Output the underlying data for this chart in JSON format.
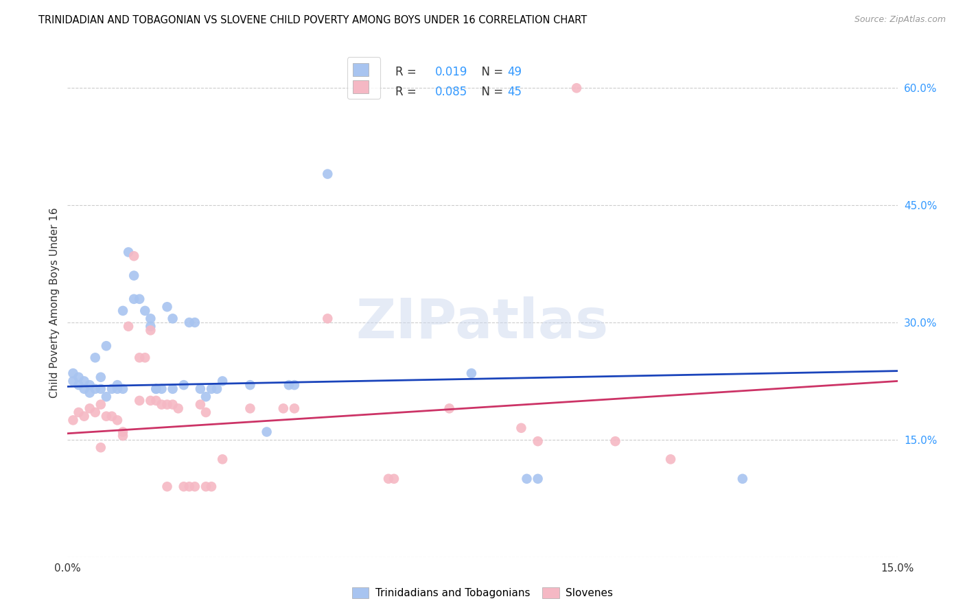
{
  "title": "TRINIDADIAN AND TOBAGONIAN VS SLOVENE CHILD POVERTY AMONG BOYS UNDER 16 CORRELATION CHART",
  "source": "Source: ZipAtlas.com",
  "ylabel": "Child Poverty Among Boys Under 16",
  "xmin": 0.0,
  "xmax": 0.15,
  "ymin": 0.0,
  "ymax": 0.65,
  "yticks_right": [
    0.0,
    0.15,
    0.3,
    0.45,
    0.6
  ],
  "ytick_labels_right": [
    "",
    "15.0%",
    "30.0%",
    "45.0%",
    "60.0%"
  ],
  "blue_color": "#a8c4f0",
  "pink_color": "#f5b8c4",
  "blue_line_color": "#1a44bb",
  "pink_line_color": "#cc3366",
  "legend_color": "#3399ff",
  "watermark": "ZIPatlas",
  "blue_points": [
    [
      0.001,
      0.225
    ],
    [
      0.001,
      0.235
    ],
    [
      0.002,
      0.22
    ],
    [
      0.002,
      0.23
    ],
    [
      0.003,
      0.225
    ],
    [
      0.003,
      0.215
    ],
    [
      0.004,
      0.22
    ],
    [
      0.004,
      0.21
    ],
    [
      0.005,
      0.215
    ],
    [
      0.005,
      0.255
    ],
    [
      0.006,
      0.23
    ],
    [
      0.006,
      0.215
    ],
    [
      0.007,
      0.27
    ],
    [
      0.007,
      0.205
    ],
    [
      0.008,
      0.215
    ],
    [
      0.009,
      0.22
    ],
    [
      0.009,
      0.215
    ],
    [
      0.01,
      0.315
    ],
    [
      0.01,
      0.215
    ],
    [
      0.011,
      0.39
    ],
    [
      0.012,
      0.36
    ],
    [
      0.012,
      0.33
    ],
    [
      0.013,
      0.33
    ],
    [
      0.014,
      0.315
    ],
    [
      0.015,
      0.305
    ],
    [
      0.015,
      0.295
    ],
    [
      0.016,
      0.215
    ],
    [
      0.016,
      0.215
    ],
    [
      0.017,
      0.215
    ],
    [
      0.018,
      0.32
    ],
    [
      0.019,
      0.305
    ],
    [
      0.019,
      0.215
    ],
    [
      0.021,
      0.22
    ],
    [
      0.022,
      0.3
    ],
    [
      0.023,
      0.3
    ],
    [
      0.024,
      0.215
    ],
    [
      0.025,
      0.205
    ],
    [
      0.026,
      0.215
    ],
    [
      0.027,
      0.215
    ],
    [
      0.028,
      0.225
    ],
    [
      0.033,
      0.22
    ],
    [
      0.036,
      0.16
    ],
    [
      0.04,
      0.22
    ],
    [
      0.041,
      0.22
    ],
    [
      0.047,
      0.49
    ],
    [
      0.073,
      0.235
    ],
    [
      0.083,
      0.1
    ],
    [
      0.085,
      0.1
    ],
    [
      0.122,
      0.1
    ]
  ],
  "pink_points": [
    [
      0.001,
      0.175
    ],
    [
      0.002,
      0.185
    ],
    [
      0.003,
      0.18
    ],
    [
      0.004,
      0.19
    ],
    [
      0.005,
      0.185
    ],
    [
      0.006,
      0.14
    ],
    [
      0.006,
      0.195
    ],
    [
      0.007,
      0.18
    ],
    [
      0.008,
      0.18
    ],
    [
      0.009,
      0.175
    ],
    [
      0.01,
      0.16
    ],
    [
      0.01,
      0.155
    ],
    [
      0.011,
      0.295
    ],
    [
      0.012,
      0.385
    ],
    [
      0.013,
      0.2
    ],
    [
      0.013,
      0.255
    ],
    [
      0.014,
      0.255
    ],
    [
      0.015,
      0.2
    ],
    [
      0.015,
      0.29
    ],
    [
      0.016,
      0.2
    ],
    [
      0.017,
      0.195
    ],
    [
      0.018,
      0.195
    ],
    [
      0.018,
      0.09
    ],
    [
      0.019,
      0.195
    ],
    [
      0.02,
      0.19
    ],
    [
      0.021,
      0.09
    ],
    [
      0.022,
      0.09
    ],
    [
      0.023,
      0.09
    ],
    [
      0.024,
      0.195
    ],
    [
      0.025,
      0.185
    ],
    [
      0.025,
      0.09
    ],
    [
      0.026,
      0.09
    ],
    [
      0.028,
      0.125
    ],
    [
      0.033,
      0.19
    ],
    [
      0.039,
      0.19
    ],
    [
      0.041,
      0.19
    ],
    [
      0.047,
      0.305
    ],
    [
      0.058,
      0.1
    ],
    [
      0.059,
      0.1
    ],
    [
      0.069,
      0.19
    ],
    [
      0.082,
      0.165
    ],
    [
      0.085,
      0.148
    ],
    [
      0.092,
      0.6
    ],
    [
      0.099,
      0.148
    ],
    [
      0.109,
      0.125
    ]
  ],
  "blue_trend_x": [
    0.0,
    0.15
  ],
  "blue_trend_y": [
    0.218,
    0.238
  ],
  "pink_trend_x": [
    0.0,
    0.15
  ],
  "pink_trend_y": [
    0.158,
    0.225
  ]
}
